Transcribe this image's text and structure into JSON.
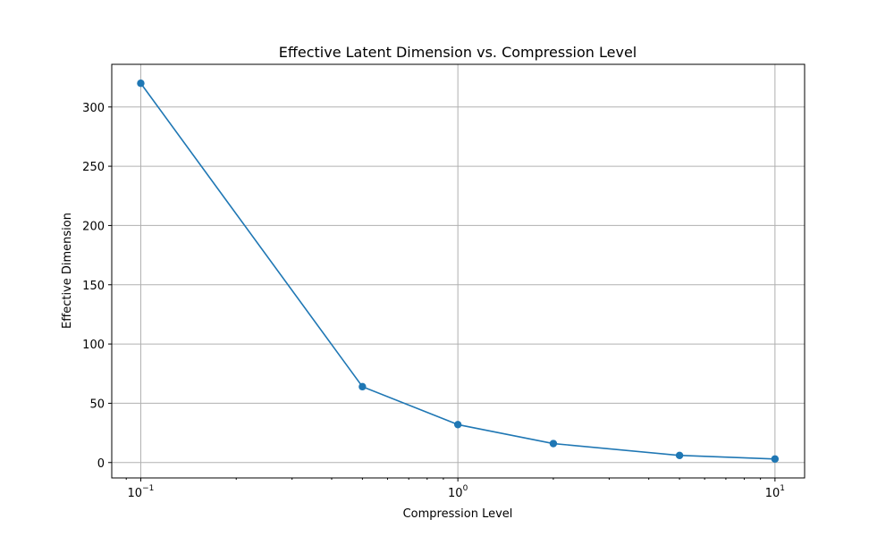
{
  "chart_data": {
    "type": "line",
    "title": "Effective Latent Dimension vs. Compression Level",
    "xlabel": "Compression Level",
    "ylabel": "Effective Dimension",
    "x_scale": "log",
    "grid": true,
    "xlim": [
      0.081,
      12.4
    ],
    "ylim": [
      -13,
      336
    ],
    "x_ticks": [
      {
        "value": 0.1,
        "base": "10",
        "exp": "−1"
      },
      {
        "value": 1,
        "base": "10",
        "exp": "0"
      },
      {
        "value": 10,
        "base": "10",
        "exp": "1"
      }
    ],
    "y_ticks": [
      0,
      50,
      100,
      150,
      200,
      250,
      300
    ],
    "series": [
      {
        "color": "#1f77b4",
        "marker": "circle",
        "x": [
          0.1,
          0.5,
          1,
          2,
          5,
          10
        ],
        "y": [
          320,
          64,
          32,
          16,
          6,
          3
        ]
      }
    ]
  }
}
